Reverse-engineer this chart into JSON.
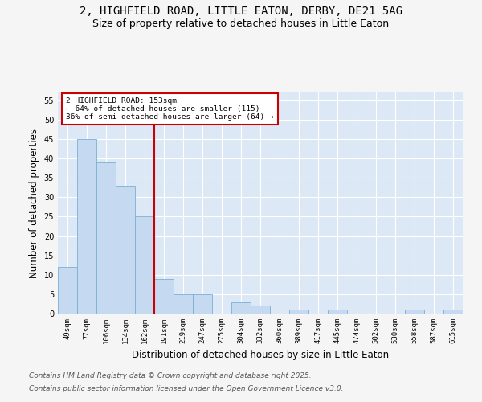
{
  "title1": "2, HIGHFIELD ROAD, LITTLE EATON, DERBY, DE21 5AG",
  "title2": "Size of property relative to detached houses in Little Eaton",
  "xlabel": "Distribution of detached houses by size in Little Eaton",
  "ylabel": "Number of detached properties",
  "categories": [
    "49sqm",
    "77sqm",
    "106sqm",
    "134sqm",
    "162sqm",
    "191sqm",
    "219sqm",
    "247sqm",
    "275sqm",
    "304sqm",
    "332sqm",
    "360sqm",
    "389sqm",
    "417sqm",
    "445sqm",
    "474sqm",
    "502sqm",
    "530sqm",
    "558sqm",
    "587sqm",
    "615sqm"
  ],
  "values": [
    12,
    45,
    39,
    33,
    25,
    9,
    5,
    5,
    0,
    3,
    2,
    0,
    1,
    0,
    1,
    0,
    0,
    0,
    1,
    0,
    1
  ],
  "bar_color": "#c5d9f0",
  "bar_edge_color": "#7bafd4",
  "bar_width": 1.0,
  "vline_x": 4.5,
  "vline_color": "#cc0000",
  "annotation_text": "2 HIGHFIELD ROAD: 153sqm\n← 64% of detached houses are smaller (115)\n36% of semi-detached houses are larger (64) →",
  "annotation_box_color": "#ffffff",
  "annotation_box_edge": "#cc0000",
  "ylim": [
    0,
    57
  ],
  "yticks": [
    0,
    5,
    10,
    15,
    20,
    25,
    30,
    35,
    40,
    45,
    50,
    55
  ],
  "bg_color": "#dce8f5",
  "grid_color": "#ffffff",
  "fig_bg_color": "#f5f5f5",
  "footer1": "Contains HM Land Registry data © Crown copyright and database right 2025.",
  "footer2": "Contains public sector information licensed under the Open Government Licence v3.0.",
  "title_fontsize": 10,
  "subtitle_fontsize": 9,
  "tick_fontsize": 6.5,
  "label_fontsize": 8.5,
  "footer_fontsize": 6.5
}
